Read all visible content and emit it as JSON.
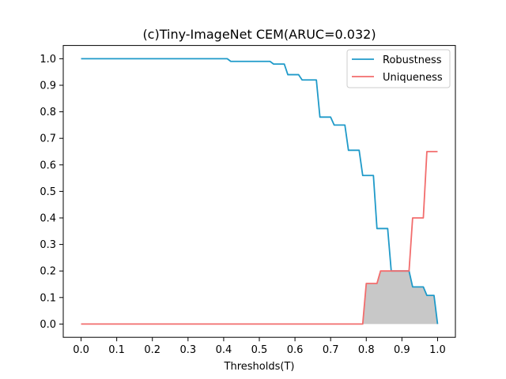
{
  "chart_data": {
    "type": "line",
    "title": "(c)Tiny-ImageNet CEM(ARUC=0.032)",
    "xlabel": "Thresholds(T)",
    "ylabel": "",
    "xlim": [
      -0.05,
      1.05
    ],
    "ylim": [
      -0.05,
      1.05
    ],
    "xticks": [
      "0.0",
      "0.1",
      "0.2",
      "0.3",
      "0.4",
      "0.5",
      "0.6",
      "0.7",
      "0.8",
      "0.9",
      "1.0"
    ],
    "yticks": [
      "0.0",
      "0.1",
      "0.2",
      "0.3",
      "0.4",
      "0.5",
      "0.6",
      "0.7",
      "0.8",
      "0.9",
      "1.0"
    ],
    "legend_position": "top-right",
    "grid": false,
    "fill_between": {
      "color": "#c8c8c8",
      "description_series": [
        "Robustness",
        "Uniqueness"
      ]
    },
    "series": [
      {
        "name": "Robustness",
        "color": "#1f9ac9",
        "x": [
          0.0,
          0.41,
          0.42,
          0.53,
          0.54,
          0.57,
          0.58,
          0.61,
          0.62,
          0.66,
          0.67,
          0.7,
          0.71,
          0.74,
          0.75,
          0.78,
          0.79,
          0.82,
          0.83,
          0.86,
          0.87,
          0.92,
          0.93,
          0.96,
          0.97,
          0.99,
          1.0
        ],
        "y": [
          1.0,
          1.0,
          0.99,
          0.99,
          0.98,
          0.98,
          0.94,
          0.94,
          0.92,
          0.92,
          0.78,
          0.78,
          0.75,
          0.75,
          0.655,
          0.655,
          0.56,
          0.56,
          0.36,
          0.36,
          0.2,
          0.2,
          0.14,
          0.14,
          0.108,
          0.108,
          0.0
        ]
      },
      {
        "name": "Uniqueness",
        "color": "#f26d6d",
        "x": [
          0.0,
          0.79,
          0.8,
          0.83,
          0.84,
          0.92,
          0.93,
          0.96,
          0.97,
          1.0
        ],
        "y": [
          0.0,
          0.0,
          0.153,
          0.153,
          0.2,
          0.2,
          0.4,
          0.4,
          0.65,
          0.65
        ]
      }
    ]
  }
}
